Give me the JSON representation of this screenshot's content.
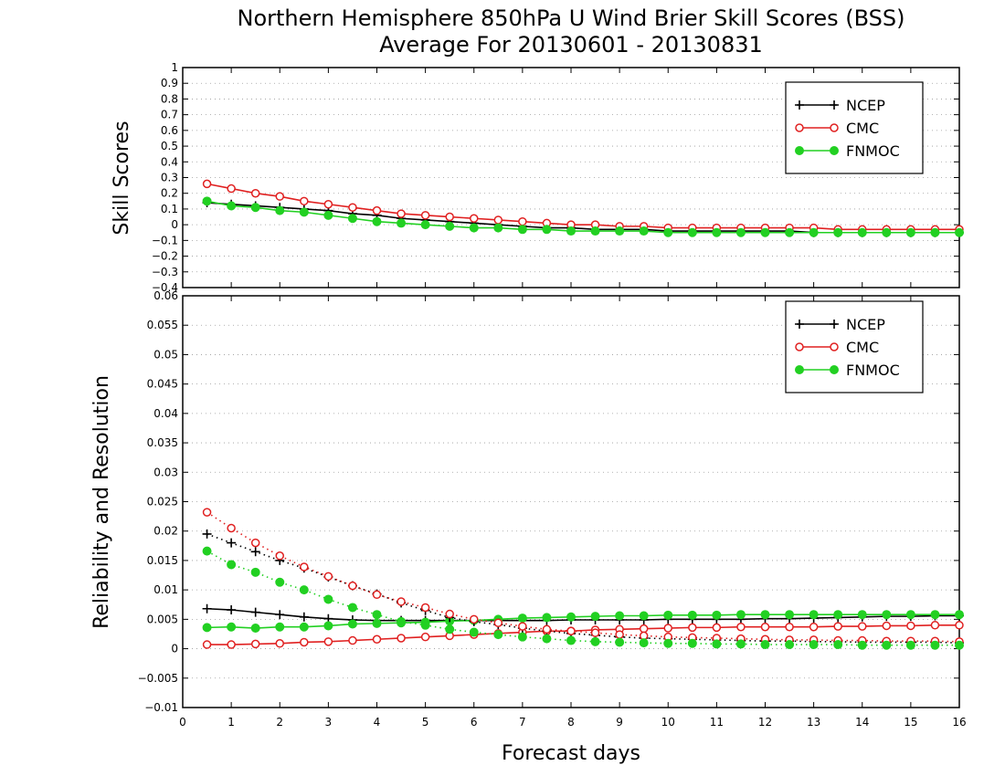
{
  "chart_data": [
    {
      "type": "line",
      "title": "Northern Hemisphere 850hPa U Wind Brier Skill Scores (BSS)",
      "subtitle": "Average For 20130601 - 20130831",
      "xlabel": "",
      "ylabel": "Skill Scores",
      "ylim": [
        -0.4,
        1
      ],
      "yticks": [
        "1",
        "0.9",
        "0.8",
        "0.7",
        "0.6",
        "0.5",
        "0.4",
        "0.3",
        "0.2",
        "0.1",
        "0",
        "−0.1",
        "−0.2",
        "−0.3",
        "−0.4"
      ],
      "grid": true,
      "legend_position": "top-right",
      "x": [
        0.5,
        1,
        1.5,
        2,
        2.5,
        3,
        3.5,
        4,
        4.5,
        5,
        5.5,
        6,
        6.5,
        7,
        7.5,
        8,
        8.5,
        9,
        9.5,
        10,
        10.5,
        11,
        11.5,
        12,
        12.5,
        13,
        13.5,
        14,
        14.5,
        15,
        15.5,
        16
      ],
      "series": [
        {
          "name": "NCEP",
          "color": "#000000",
          "marker": "plus",
          "values": [
            0.14,
            0.13,
            0.12,
            0.11,
            0.1,
            0.09,
            0.07,
            0.06,
            0.04,
            0.03,
            0.02,
            0.01,
            0.0,
            -0.01,
            -0.02,
            -0.02,
            -0.03,
            -0.03,
            -0.03,
            -0.04,
            -0.04,
            -0.04,
            -0.04,
            -0.04,
            -0.04,
            -0.05,
            -0.05,
            -0.05,
            -0.05,
            -0.05,
            -0.05,
            -0.05
          ]
        },
        {
          "name": "CMC",
          "color": "#e02020",
          "marker": "open-circle",
          "values": [
            0.26,
            0.23,
            0.2,
            0.18,
            0.15,
            0.13,
            0.11,
            0.09,
            0.07,
            0.06,
            0.05,
            0.04,
            0.03,
            0.02,
            0.01,
            0.0,
            0.0,
            -0.01,
            -0.01,
            -0.02,
            -0.02,
            -0.02,
            -0.02,
            -0.02,
            -0.02,
            -0.02,
            -0.03,
            -0.03,
            -0.03,
            -0.03,
            -0.03,
            -0.03
          ]
        },
        {
          "name": "FNMOC",
          "color": "#22d022",
          "marker": "filled-circle",
          "values": [
            0.15,
            0.12,
            0.11,
            0.09,
            0.08,
            0.06,
            0.04,
            0.02,
            0.01,
            0.0,
            -0.01,
            -0.02,
            -0.02,
            -0.03,
            -0.03,
            -0.04,
            -0.04,
            -0.04,
            -0.04,
            -0.05,
            -0.05,
            -0.05,
            -0.05,
            -0.05,
            -0.05,
            -0.05,
            -0.05,
            -0.05,
            -0.05,
            -0.05,
            -0.05,
            -0.05
          ]
        }
      ]
    },
    {
      "type": "line",
      "xlabel": "Forecast days",
      "ylabel": "Reliability and Resolution",
      "xlim": [
        0,
        16
      ],
      "xticks": [
        "0",
        "1",
        "2",
        "3",
        "4",
        "5",
        "6",
        "7",
        "8",
        "9",
        "10",
        "11",
        "12",
        "13",
        "14",
        "15",
        "16"
      ],
      "ylim": [
        -0.01,
        0.06
      ],
      "yticks": [
        "0.06",
        "0.055",
        "0.05",
        "0.045",
        "0.04",
        "0.035",
        "0.03",
        "0.025",
        "0.02",
        "0.015",
        "0.01",
        "0.005",
        "0",
        "−0.005",
        "−0.01"
      ],
      "grid": true,
      "legend_position": "top-right",
      "x": [
        0.5,
        1,
        1.5,
        2,
        2.5,
        3,
        3.5,
        4,
        4.5,
        5,
        5.5,
        6,
        6.5,
        7,
        7.5,
        8,
        8.5,
        9,
        9.5,
        10,
        10.5,
        11,
        11.5,
        12,
        12.5,
        13,
        13.5,
        14,
        14.5,
        15,
        15.5,
        16
      ],
      "series": [
        {
          "name": "NCEP",
          "color": "#000000",
          "marker": "plus",
          "style": "solid",
          "values": [
            0.0068,
            0.0066,
            0.0062,
            0.0058,
            0.0054,
            0.0051,
            0.0049,
            0.0048,
            0.0048,
            0.0048,
            0.0048,
            0.0048,
            0.0048,
            0.0048,
            0.0048,
            0.0049,
            0.0049,
            0.0049,
            0.0049,
            0.005,
            0.005,
            0.005,
            0.005,
            0.0051,
            0.0051,
            0.0052,
            0.0053,
            0.0054,
            0.0055,
            0.0055,
            0.0056,
            0.0056
          ]
        },
        {
          "name": "CMC",
          "color": "#e02020",
          "marker": "open-circle",
          "style": "solid",
          "values": [
            0.0007,
            0.0007,
            0.0008,
            0.0009,
            0.0011,
            0.0012,
            0.0014,
            0.0016,
            0.0018,
            0.002,
            0.0022,
            0.0024,
            0.0026,
            0.0028,
            0.003,
            0.003,
            0.0032,
            0.0033,
            0.0034,
            0.0035,
            0.0036,
            0.0036,
            0.0037,
            0.0037,
            0.0037,
            0.0037,
            0.0038,
            0.0038,
            0.0039,
            0.0039,
            0.004,
            0.004
          ]
        },
        {
          "name": "FNMOC",
          "color": "#22d022",
          "marker": "filled-circle",
          "style": "solid",
          "values": [
            0.0036,
            0.0037,
            0.0035,
            0.0037,
            0.0037,
            0.0039,
            0.0042,
            0.0043,
            0.0044,
            0.0045,
            0.0047,
            0.0048,
            0.005,
            0.0052,
            0.0053,
            0.0054,
            0.0055,
            0.0056,
            0.0056,
            0.0057,
            0.0057,
            0.0057,
            0.0058,
            0.0058,
            0.0058,
            0.0058,
            0.0058,
            0.0058,
            0.0058,
            0.0058,
            0.0058,
            0.0058
          ]
        },
        {
          "name": "",
          "color": "#000000",
          "marker": "plus",
          "style": "dotted",
          "values": [
            0.0195,
            0.018,
            0.0165,
            0.015,
            0.0137,
            0.0122,
            0.0107,
            0.0093,
            0.0078,
            0.0065,
            0.0053,
            0.0046,
            0.0041,
            0.0035,
            0.003,
            0.0026,
            0.0023,
            0.002,
            0.0018,
            0.0017,
            0.0016,
            0.0015,
            0.0014,
            0.0013,
            0.0013,
            0.0012,
            0.0012,
            0.0011,
            0.0011,
            0.0011,
            0.0011,
            0.001
          ]
        },
        {
          "name": "",
          "color": "#e02020",
          "marker": "open-circle",
          "style": "dotted",
          "values": [
            0.0232,
            0.0205,
            0.018,
            0.0158,
            0.0139,
            0.0123,
            0.0107,
            0.0092,
            0.008,
            0.007,
            0.0059,
            0.005,
            0.0044,
            0.0038,
            0.0033,
            0.003,
            0.0027,
            0.0024,
            0.0022,
            0.002,
            0.0019,
            0.0018,
            0.0017,
            0.0016,
            0.0015,
            0.0015,
            0.0014,
            0.0014,
            0.0013,
            0.0013,
            0.0013,
            0.0012
          ]
        },
        {
          "name": "",
          "color": "#22d022",
          "marker": "filled-circle",
          "style": "dotted",
          "values": [
            0.0166,
            0.0143,
            0.013,
            0.0113,
            0.01,
            0.0084,
            0.007,
            0.0058,
            0.0046,
            0.004,
            0.0033,
            0.0028,
            0.0024,
            0.002,
            0.0017,
            0.0014,
            0.0012,
            0.0011,
            0.001,
            0.0009,
            0.0009,
            0.0008,
            0.0008,
            0.0007,
            0.0007,
            0.0007,
            0.0007,
            0.0006,
            0.0006,
            0.0006,
            0.0006,
            0.0006
          ]
        }
      ]
    }
  ]
}
